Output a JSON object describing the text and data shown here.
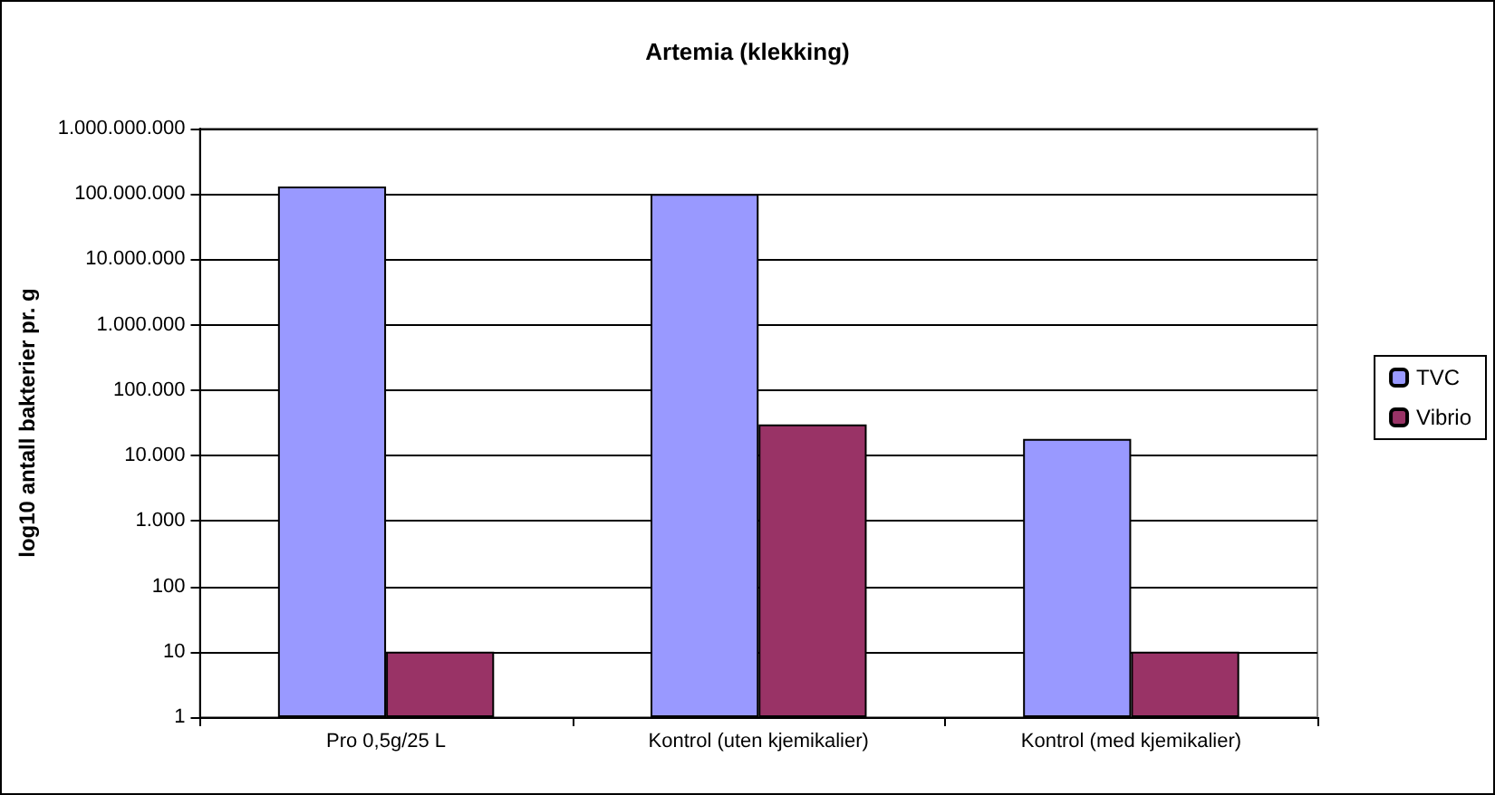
{
  "chart_data": {
    "type": "bar",
    "title": "Artemia (klekking)",
    "ylabel": "log10 antall bakterier pr. g",
    "categories": [
      "Pro 0,5g/25 L",
      "Kontrol (uten kjemikalier)",
      "Kontrol (med kjemikalier)"
    ],
    "series": [
      {
        "name": "TVC",
        "color": "#9999ff",
        "values": [
          130000000,
          100000000,
          18000
        ]
      },
      {
        "name": "Vibrio",
        "color": "#993366",
        "values": [
          10,
          30000,
          10
        ]
      }
    ],
    "log": true,
    "ylim": [
      1,
      1000000000
    ],
    "yticks": [
      {
        "value": 1,
        "label": "1"
      },
      {
        "value": 10,
        "label": "10"
      },
      {
        "value": 100,
        "label": "100"
      },
      {
        "value": 1000,
        "label": "1.000"
      },
      {
        "value": 10000,
        "label": "10.000"
      },
      {
        "value": 100000,
        "label": "100.000"
      },
      {
        "value": 1000000,
        "label": "1.000.000"
      },
      {
        "value": 10000000,
        "label": "10.000.000"
      },
      {
        "value": 100000000,
        "label": "100.000.000"
      },
      {
        "value": 1000000000,
        "label": "1.000.000.000"
      }
    ],
    "grid": "y",
    "legend": "right"
  }
}
